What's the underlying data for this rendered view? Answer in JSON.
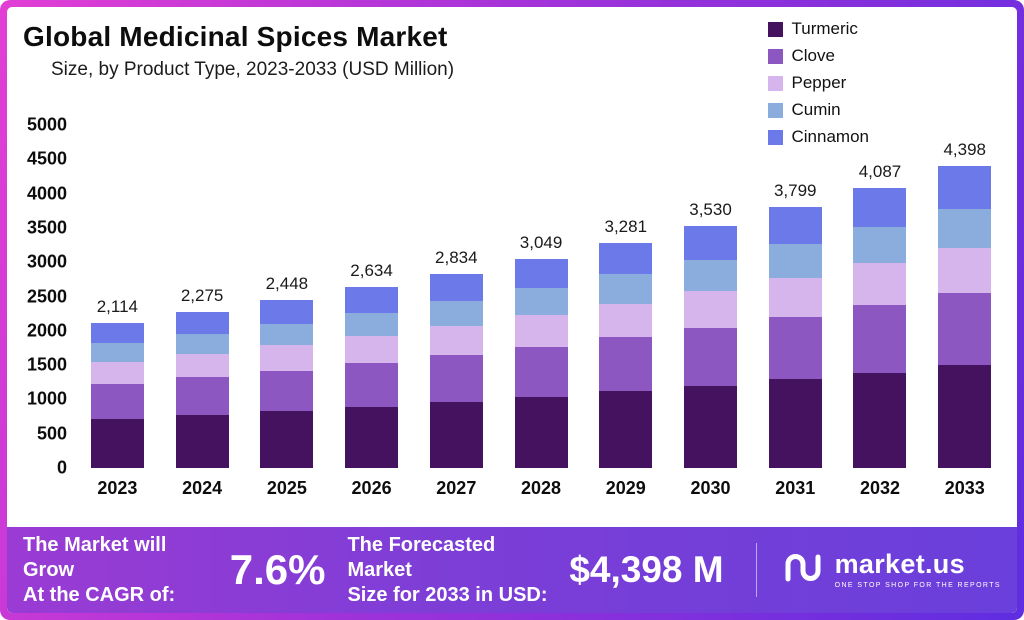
{
  "header": {
    "title": "Global Medicinal Spices Market",
    "subtitle": "Size, by Product Type, 2023-2033 (USD Million)"
  },
  "chart_data": {
    "type": "bar",
    "stacked": true,
    "title": "Global Medicinal Spices Market",
    "subtitle": "Size, by Product Type, 2023-2033 (USD Million)",
    "unit": "USD Million",
    "categories": [
      "2023",
      "2024",
      "2025",
      "2026",
      "2027",
      "2028",
      "2029",
      "2030",
      "2031",
      "2032",
      "2033"
    ],
    "series": [
      {
        "name": "Turmeric",
        "color": "#44125e",
        "values": [
          719,
          774,
          832,
          896,
          964,
          1037,
          1116,
          1200,
          1292,
          1390,
          1495
        ]
      },
      {
        "name": "Clove",
        "color": "#8d57c1",
        "values": [
          507,
          546,
          588,
          632,
          680,
          732,
          787,
          847,
          912,
          981,
          1056
        ]
      },
      {
        "name": "Pepper",
        "color": "#d6b4ec",
        "values": [
          317,
          341,
          367,
          395,
          425,
          457,
          492,
          530,
          570,
          613,
          660
        ]
      },
      {
        "name": "Cumin",
        "color": "#8badde",
        "values": [
          275,
          296,
          318,
          342,
          368,
          396,
          427,
          459,
          494,
          531,
          572
        ]
      },
      {
        "name": "Cinnamon",
        "color": "#6c79e8",
        "values": [
          296,
          318,
          343,
          369,
          397,
          427,
          459,
          494,
          531,
          572,
          615
        ]
      }
    ],
    "totals": [
      2114,
      2275,
      2448,
      2634,
      2834,
      3049,
      3281,
      3530,
      3799,
      4087,
      4398
    ],
    "total_labels": [
      "2,114",
      "2,275",
      "2,448",
      "2,634",
      "2,834",
      "3,049",
      "3,281",
      "3,530",
      "3,799",
      "4,087",
      "4,398"
    ],
    "ylim": [
      0,
      5000
    ],
    "yticks": [
      0,
      500,
      1000,
      1500,
      2000,
      2500,
      3000,
      3500,
      4000,
      4500,
      5000
    ],
    "grid": false,
    "legend_position": "top-right"
  },
  "footer": {
    "cagr_label_line1": "The Market will Grow",
    "cagr_label_line2": "At the CAGR of:",
    "cagr_value": "7.6%",
    "forecast_label_line1": "The Forecasted Market",
    "forecast_label_line2": "Size for 2033 in USD:",
    "forecast_value": "$4,398 M",
    "brand_name": "market.us",
    "brand_tagline": "ONE STOP SHOP FOR THE REPORTS"
  }
}
